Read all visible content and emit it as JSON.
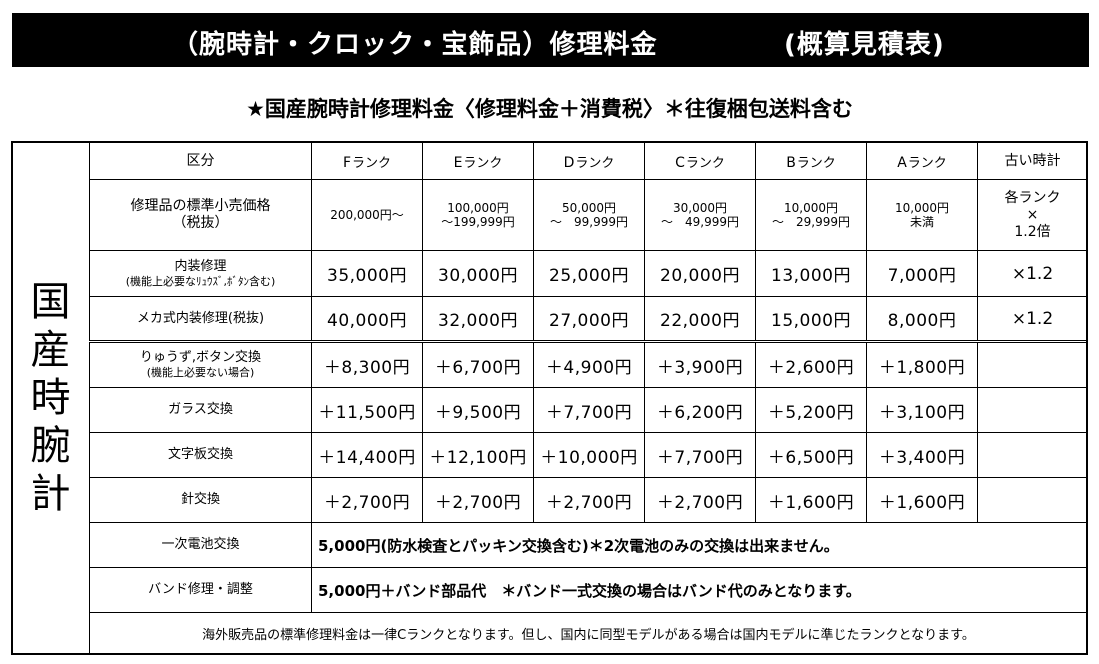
{
  "header": {
    "title": "（腕時計・クロック・宝飾品）修理料金",
    "title_sub": "(概算見積表)"
  },
  "subtitle": "★国産腕時計修理料金〈修理料金＋消費税〉＊往復梱包送料含む",
  "side_label": [
    "国",
    "産",
    "時",
    "腕",
    "計"
  ],
  "table": {
    "columns": [
      {
        "letter": "F",
        "suffix": "ランク"
      },
      {
        "letter": "E",
        "suffix": "ランク"
      },
      {
        "letter": "D",
        "suffix": "ランク"
      },
      {
        "letter": "C",
        "suffix": "ランク"
      },
      {
        "letter": "B",
        "suffix": "ランク"
      },
      {
        "letter": "A",
        "suffix": "ランク"
      }
    ],
    "header_first": "区分",
    "header_last": "古い時計",
    "retail": {
      "label_line1": "修理品の標準小売価格",
      "label_line2": "（税抜）",
      "values": [
        {
          "l1": "200,000円～",
          "l2": ""
        },
        {
          "l1": "100,000円",
          "l2": "～199,999円"
        },
        {
          "l1": "50,000円",
          "l2": "～　99,999円"
        },
        {
          "l1": "30,000円",
          "l2": "～　49,999円"
        },
        {
          "l1": "10,000円",
          "l2": "～　29,999円"
        },
        {
          "l1": "10,000円",
          "l2": "未満"
        }
      ],
      "last_l1": "各ランク",
      "last_l2": "×",
      "last_l3": "1.2倍"
    },
    "rows": [
      {
        "label_l1": "内装修理",
        "label_l2": "(機能上必要なﾘｭｳｽﾞ,ﾎﾞﾀﾝ含む)",
        "values": [
          "35,000円",
          "30,000円",
          "25,000円",
          "20,000円",
          "13,000円",
          "7,000円"
        ],
        "last": "×1.2"
      },
      {
        "label_l1": "メカ式内装修理(税抜)",
        "label_l2": "",
        "values": [
          "40,000円",
          "32,000円",
          "27,000円",
          "22,000円",
          "15,000円",
          "8,000円"
        ],
        "last": "×1.2"
      },
      {
        "label_l1": "りゅうず,ボタン交換",
        "label_l2": "(機能上必要ない場合)",
        "values": [
          "＋8,300円",
          "＋6,700円",
          "＋4,900円",
          "＋3,900円",
          "＋2,600円",
          "＋1,800円"
        ],
        "last": ""
      },
      {
        "label_l1": "ガラス交換",
        "label_l2": "",
        "values": [
          "＋11,500円",
          "＋9,500円",
          "＋7,700円",
          "＋6,200円",
          "＋5,200円",
          "＋3,100円"
        ],
        "last": ""
      },
      {
        "label_l1": "文字板交換",
        "label_l2": "",
        "values": [
          "＋14,400円",
          "＋12,100円",
          "＋10,000円",
          "＋7,700円",
          "＋6,500円",
          "＋3,400円"
        ],
        "last": ""
      },
      {
        "label_l1": "針交換",
        "label_l2": "",
        "values": [
          "＋2,700円",
          "＋2,700円",
          "＋2,700円",
          "＋2,700円",
          "＋1,600円",
          "＋1,600円"
        ],
        "last": ""
      }
    ],
    "battery": {
      "label": "一次電池交換",
      "text": "5,000円(防水検査とパッキン交換含む)＊2次電池のみの交換は出来ません。"
    },
    "band": {
      "label": "バンド修理・調整",
      "text": "5,000円＋バンド部品代　＊バンド一式交換の場合はバンド代のみとなります。"
    },
    "footer": "海外販売品の標準修理料金は一律Cランクとなります。但し、国内に同型モデルがある場合は国内モデルに準じたランクとなります。"
  }
}
